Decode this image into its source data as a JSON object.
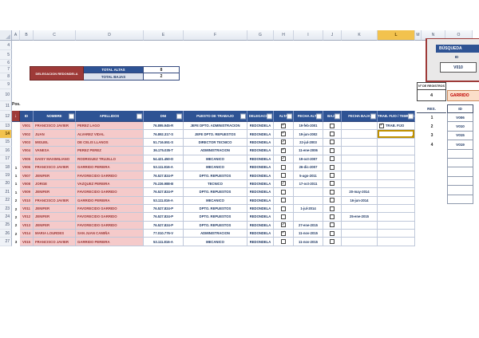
{
  "colors": {
    "maroon": "#9e3a38",
    "header_blue": "#2e5394",
    "pink": "#f5caca",
    "red_text": "#993636",
    "navy": "#1f3864",
    "gold": "#f2c24e",
    "orange_bg": "#fbdec9",
    "orange_text": "#c00000",
    "value_light": "#dde3ee"
  },
  "sheet": {
    "column_letters": [
      "A",
      "B",
      "C",
      "D",
      "E",
      "F",
      "G",
      "H",
      "I",
      "J",
      "K",
      "L",
      "M",
      "N",
      "O"
    ],
    "highlighted_column": "L",
    "row_numbers": [
      4,
      5,
      6,
      7,
      8,
      9,
      10,
      11,
      12,
      13,
      14,
      15,
      16,
      17,
      18,
      19,
      20,
      21,
      22,
      23,
      24,
      25,
      26,
      27
    ],
    "highlighted_row": 14
  },
  "summary": {
    "delegacion_label": "DELEGACION REDONDELA",
    "total_altas_label": "TOTAL ALTAS",
    "total_altas_value": "8",
    "total_bajas_label": "TOTAL BAJAS",
    "total_bajas_value": "2"
  },
  "search_panel": {
    "title": "BÚSQUEDA",
    "id_label": "ID",
    "id_value": "V010"
  },
  "registros": {
    "label": "Nº DE REGISTROS",
    "value": "4",
    "term": "GARRIDO"
  },
  "results": {
    "res_header": "RES.",
    "id_header": "ID",
    "rows": [
      {
        "res": "1",
        "id": "V006"
      },
      {
        "res": "2",
        "id": "V010"
      },
      {
        "res": "3",
        "id": "V015"
      },
      {
        "res": "4",
        "id": "V019"
      }
    ],
    "empty_rows": 6
  },
  "table": {
    "pos_label": "Pos.",
    "headers": {
      "pos": "↓",
      "id": "ID",
      "nombre": "NOMBRE",
      "apellidos": "APELLIDOS",
      "dni": "DNI",
      "puesto": "PUESTO DE TRABAJO",
      "delegacion": "DELEGACION",
      "alta": "ALTA",
      "fecha_alta": "FECHA ALTA",
      "baja": "BAJA",
      "fecha_baja": "FECHA BAJA",
      "trab": "TRAB. FIJO / TEMPORAL"
    },
    "rows": [
      {
        "pos": "",
        "id": "V001",
        "nombre": "FRANCISCO JAVIER",
        "apellidos": "PEREZ LAGO",
        "dni": "76.895.945-R",
        "puesto": "JEFE DPTO. ADMINISTRACION",
        "delegacion": "REDONDELA",
        "alta": true,
        "fecha_alta": "19-feb-2001",
        "baja": false,
        "fecha_baja": "",
        "trab_checked": true,
        "trab_label": "TRAB. FIJO",
        "active": false
      },
      {
        "pos": "",
        "id": "V002",
        "nombre": "JUAN",
        "apellidos": "ALVAREZ VIDAL",
        "dni": "76.892.317-S",
        "puesto": "JEFE DPTO. REPUESTOS",
        "delegacion": "REDONDELA",
        "alta": true,
        "fecha_alta": "19-jun-2002",
        "baja": false,
        "fecha_baja": "",
        "trab_checked": false,
        "trab_label": "",
        "active": true
      },
      {
        "pos": "",
        "id": "V003",
        "nombre": "MIGUEL",
        "apellidos": "DE CELIS LLANOS",
        "dni": "51.716.551-S",
        "puesto": "DIRECTOR TECNICO",
        "delegacion": "REDONDELA",
        "alta": true,
        "fecha_alta": "22-jul-2003",
        "baja": false,
        "fecha_baja": "",
        "trab_checked": false,
        "trab_label": "",
        "active": false
      },
      {
        "pos": "",
        "id": "V004",
        "nombre": "VANESA",
        "apellidos": "PEREZ PEREZ",
        "dni": "36.175.035-T",
        "puesto": "ADMINISTRACION",
        "delegacion": "REDONDELA",
        "alta": true,
        "fecha_alta": "11-ene-2006",
        "baja": false,
        "fecha_baja": "",
        "trab_checked": false,
        "trab_label": "",
        "active": false
      },
      {
        "pos": "",
        "id": "V005",
        "nombre": "DAISY MAXIMILIANO",
        "apellidos": "RODRIGUEZ TRUJILLO",
        "dni": "54.421.450-D",
        "puesto": "MECANICO",
        "delegacion": "REDONDELA",
        "alta": true,
        "fecha_alta": "19-oct-2007",
        "baja": false,
        "fecha_baja": "",
        "trab_checked": false,
        "trab_label": "",
        "active": false
      },
      {
        "pos": "1",
        "id": "V006",
        "nombre": "FRANCISCO JAVIER",
        "apellidos": "GARRIDO PEREIRA",
        "dni": "53.111.816-A",
        "puesto": "MECANICO",
        "delegacion": "REDONDELA",
        "alta": false,
        "fecha_alta": "26-dic-2007",
        "baja": false,
        "fecha_baja": "",
        "trab_checked": false,
        "trab_label": "",
        "active": false
      },
      {
        "pos": "1",
        "id": "V007",
        "nombre": "JENIFER",
        "apellidos": "FAVORECIDO GARRIDO",
        "dni": "76.527.824-P",
        "puesto": "DPTO. REPUESTOS",
        "delegacion": "REDONDELA",
        "alta": false,
        "fecha_alta": "5-ago-2011",
        "baja": false,
        "fecha_baja": "",
        "trab_checked": false,
        "trab_label": "",
        "active": false
      },
      {
        "pos": "1",
        "id": "V008",
        "nombre": "JORGE",
        "apellidos": "VAZQUEZ PEREIRA",
        "dni": "75.226.988-B",
        "puesto": "TECNICO",
        "delegacion": "REDONDELA",
        "alta": true,
        "fecha_alta": "17-oct-2011",
        "baja": false,
        "fecha_baja": "",
        "trab_checked": false,
        "trab_label": "",
        "active": false
      },
      {
        "pos": "1",
        "id": "V009",
        "nombre": "JENIFER",
        "apellidos": "FAVORECIDO GARRIDO",
        "dni": "76.527.824-P",
        "puesto": "DPTO. REPUESTOS",
        "delegacion": "REDONDELA",
        "alta": false,
        "fecha_alta": "",
        "baja": false,
        "fecha_baja": "20-may-2014",
        "trab_checked": false,
        "trab_label": "",
        "active": false
      },
      {
        "pos": "2",
        "id": "V010",
        "nombre": "FRANCISCO JAVIER",
        "apellidos": "GARRIDO PEREIRA",
        "dni": "53.111.816-A",
        "puesto": "MECANICO",
        "delegacion": "REDONDELA",
        "alta": false,
        "fecha_alta": "",
        "baja": false,
        "fecha_baja": "16-jun-2014",
        "trab_checked": false,
        "trab_label": "",
        "active": false
      },
      {
        "pos": "2",
        "id": "V011",
        "nombre": "JENIFER",
        "apellidos": "FAVORECIDO GARRIDO",
        "dni": "76.527.824-P",
        "puesto": "DPTO. REPUESTOS",
        "delegacion": "REDONDELA",
        "alta": false,
        "fecha_alta": "1-jul-2014",
        "baja": false,
        "fecha_baja": "",
        "trab_checked": false,
        "trab_label": "",
        "active": false
      },
      {
        "pos": "2",
        "id": "V012",
        "nombre": "JENIFER",
        "apellidos": "FAVORECIDO GARRIDO",
        "dni": "76.527.824-P",
        "puesto": "DPTO. REPUESTOS",
        "delegacion": "REDONDELA",
        "alta": false,
        "fecha_alta": "",
        "baja": false,
        "fecha_baja": "25-ene-2015",
        "trab_checked": false,
        "trab_label": "",
        "active": false
      },
      {
        "pos": "2",
        "id": "V013",
        "nombre": "JENIFER",
        "apellidos": "FAVORECIDO GARRIDO",
        "dni": "76.527.824-P",
        "puesto": "DPTO. REPUESTOS",
        "delegacion": "REDONDELA",
        "alta": true,
        "fecha_alta": "27-ene-2015",
        "baja": false,
        "fecha_baja": "",
        "trab_checked": false,
        "trab_label": "",
        "active": false
      },
      {
        "pos": "2",
        "id": "V014",
        "nombre": "MARIA LOURDES",
        "apellidos": "SAN JUAN CAMIÑA",
        "dni": "77.010.776-V",
        "puesto": "ADMINISTRACION",
        "delegacion": "REDONDELA",
        "alta": true,
        "fecha_alta": "11-nov-2015",
        "baja": false,
        "fecha_baja": "",
        "trab_checked": false,
        "trab_label": "",
        "active": false
      },
      {
        "pos": "3",
        "id": "V015",
        "nombre": "FRANCISCO JAVIER",
        "apellidos": "GARRIDO PEREIRA",
        "dni": "53.111.816-A",
        "puesto": "MECANICO",
        "delegacion": "REDONDELA",
        "alta": false,
        "fecha_alta": "11-nov-2015",
        "baja": false,
        "fecha_baja": "",
        "trab_checked": false,
        "trab_label": "",
        "active": false
      }
    ]
  }
}
